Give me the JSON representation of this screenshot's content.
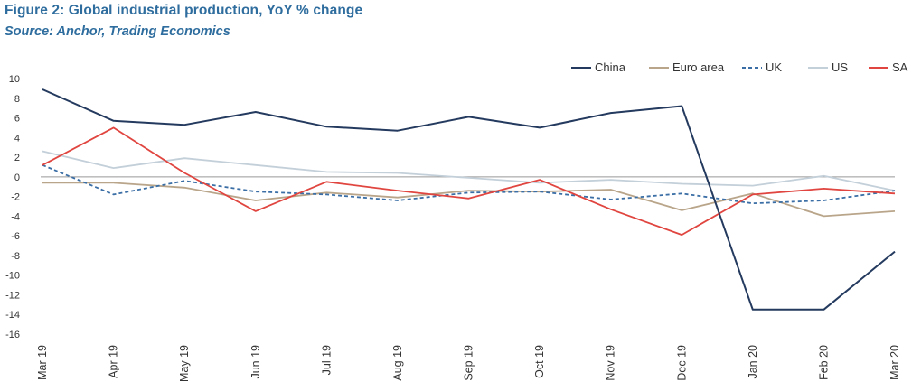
{
  "header": {
    "title": "Figure 2: Global industrial production, YoY % change",
    "source": "Source: Anchor, Trading Economics"
  },
  "colors": {
    "china": "#243a5e",
    "euro_area": "#b9a58a",
    "uk": "#3a6ea5",
    "us": "#c3cfd9",
    "sa": "#e0453f",
    "zero_line": "#999999"
  },
  "chart_data": {
    "type": "line",
    "title": "Figure 2: Global industrial production, YoY % change",
    "xlabel": "",
    "ylabel": "",
    "ylim": [
      -16,
      10
    ],
    "y_ticks": [
      10,
      8,
      6,
      4,
      2,
      0,
      -2,
      -4,
      -6,
      -8,
      -10,
      -12,
      -14,
      -16
    ],
    "grid": false,
    "legend_position": "top-right",
    "categories": [
      "Mar 19",
      "Apr 19",
      "May 19",
      "Jun 19",
      "Jul 19",
      "Aug 19",
      "Sep 19",
      "Oct 19",
      "Nov 19",
      "Dec 19",
      "Jan 20",
      "Feb 20",
      "Mar 20"
    ],
    "series": [
      {
        "name": "China",
        "key": "china",
        "dash": "solid",
        "values": [
          8.9,
          5.7,
          5.3,
          6.6,
          5.1,
          4.7,
          6.1,
          5.0,
          6.5,
          7.2,
          -13.5,
          -13.5,
          -7.6
        ]
      },
      {
        "name": "Euro area",
        "key": "euro_area",
        "dash": "solid",
        "values": [
          -0.6,
          -0.6,
          -1.1,
          -2.4,
          -1.6,
          -2.1,
          -1.4,
          -1.5,
          -1.3,
          -3.4,
          -1.7,
          -4.0,
          -3.5
        ]
      },
      {
        "name": "UK",
        "key": "uk",
        "dash": "dashed",
        "values": [
          1.2,
          -1.8,
          -0.4,
          -1.5,
          -1.8,
          -2.4,
          -1.6,
          -1.5,
          -2.3,
          -1.7,
          -2.7,
          -2.4,
          -1.4
        ]
      },
      {
        "name": "US",
        "key": "us",
        "dash": "solid",
        "values": [
          2.6,
          0.9,
          1.9,
          1.2,
          0.5,
          0.4,
          -0.1,
          -0.6,
          -0.3,
          -0.7,
          -0.9,
          0.1,
          -1.4
        ]
      },
      {
        "name": "SA",
        "key": "sa",
        "dash": "solid",
        "values": [
          1.2,
          5.0,
          0.4,
          -3.5,
          -0.5,
          -1.4,
          -2.2,
          -0.3,
          -3.3,
          -5.9,
          -1.8,
          -1.2,
          -1.7
        ]
      }
    ]
  }
}
